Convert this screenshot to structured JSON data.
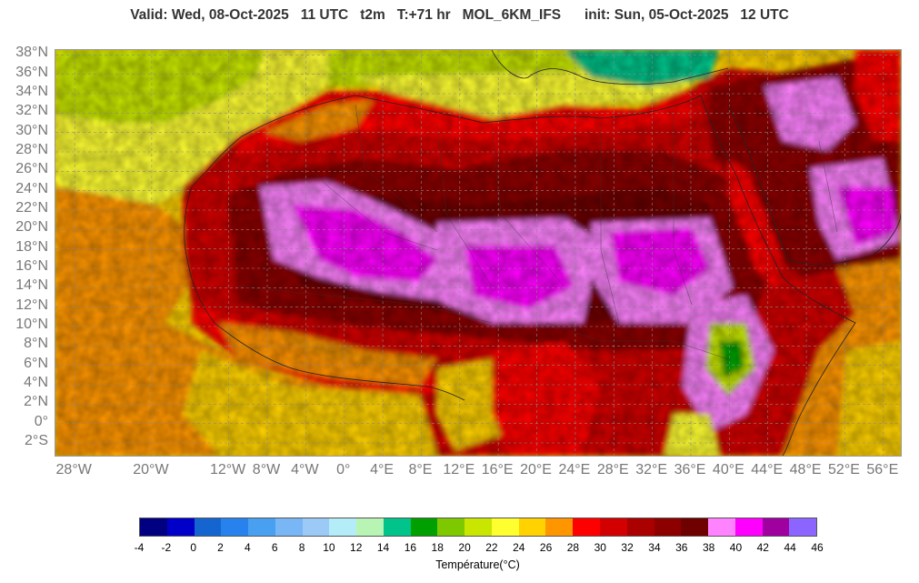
{
  "header": {
    "valid": "Valid: Wed, 08-Oct-2025",
    "hour": "11 UTC",
    "param": "t2m",
    "lead": "T:+71 hr",
    "model": "MOL_6KM_IFS",
    "init": "init: Sun, 05-Oct-2025",
    "init_hour": "12 UTC"
  },
  "map": {
    "lat_labels": [
      "38°N",
      "36°N",
      "34°N",
      "32°N",
      "30°N",
      "28°N",
      "26°N",
      "24°N",
      "22°N",
      "20°N",
      "18°N",
      "16°N",
      "14°N",
      "12°N",
      "10°N",
      "8°N",
      "6°N",
      "4°N",
      "2°N",
      "0°",
      "2°S"
    ],
    "lon_labels": [
      "28°W",
      "20°W",
      "12°W",
      "8°W",
      "4°W",
      "0°",
      "4°E",
      "8°E",
      "12°E",
      "16°E",
      "20°E",
      "24°E",
      "28°E",
      "32°E",
      "36°E",
      "40°E",
      "44°E",
      "48°E",
      "52°E",
      "56°E"
    ],
    "lat_range": [
      -3.5,
      38.5
    ],
    "lon_range": [
      -30,
      58
    ]
  },
  "legend": {
    "title": "Température(°C)",
    "ticks": [
      "-4",
      "-2",
      "0",
      "2",
      "4",
      "6",
      "8",
      "10",
      "12",
      "14",
      "16",
      "18",
      "20",
      "22",
      "24",
      "26",
      "28",
      "30",
      "32",
      "34",
      "36",
      "38",
      "40",
      "42",
      "44",
      "46"
    ],
    "colors": [
      "#000080",
      "#0000c8",
      "#1565d0",
      "#2882ee",
      "#4aa0f0",
      "#78b6f5",
      "#9ccaf7",
      "#b4ecf8",
      "#b8f5b4",
      "#00c48a",
      "#00a000",
      "#7ec800",
      "#c8e600",
      "#ffff30",
      "#ffd200",
      "#ff9600",
      "#ff0000",
      "#d20000",
      "#aa0000",
      "#8c0000",
      "#6e0000",
      "#ff82ff",
      "#ff00ff",
      "#a000a0",
      "#8c64ff"
    ]
  }
}
